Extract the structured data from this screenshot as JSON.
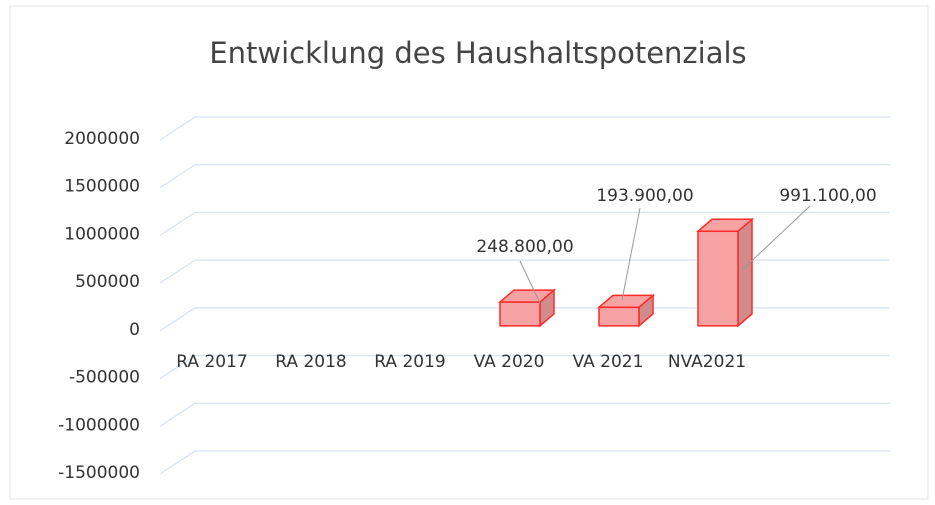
{
  "chart_data": {
    "type": "bar3d",
    "title": "Entwicklung des Haushaltspotenzials",
    "categories": [
      "RA 2017",
      "RA 2018",
      "RA 2019",
      "VA 2020",
      "VA 2021",
      "NVA2021"
    ],
    "values": [
      null,
      null,
      null,
      248800,
      193900,
      991100
    ],
    "value_labels": [
      null,
      null,
      null,
      "248.800,00",
      "193.900,00",
      "991.100,00"
    ],
    "color": "#f7a3a3",
    "ylim": [
      -1500000,
      2000000
    ],
    "yticks": [
      -1500000,
      -1000000,
      -500000,
      0,
      500000,
      1000000,
      1500000,
      2000000
    ],
    "grid": true
  }
}
